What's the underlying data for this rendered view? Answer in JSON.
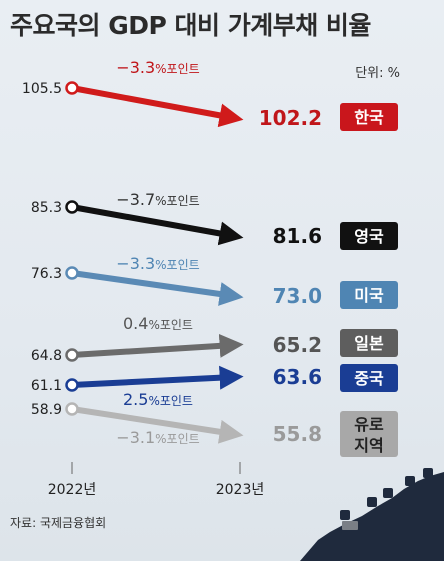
{
  "title": "주요국의 GDP 대비 가계부채 비율",
  "unit_label": "단위: %",
  "source": "자료: 국제금융협회",
  "colors": {
    "background": "#e6ebf0",
    "hill": "#1f2a3d"
  },
  "chart_data": {
    "type": "line",
    "categories": [
      "2022년",
      "2023년"
    ],
    "ylim": [
      50,
      110
    ],
    "series": [
      {
        "name": "한국",
        "values": [
          105.5,
          102.2
        ],
        "change": "−3.3",
        "change_unit": "%포인트",
        "color": "#d01b1b",
        "label_color": "#c0161a",
        "val_color": "#c0161a",
        "change_color": "#c0161a",
        "box_color": "#c9161c",
        "box_text_color": "#ffffff"
      },
      {
        "name": "영국",
        "values": [
          85.3,
          81.6
        ],
        "change": "−3.7",
        "change_unit": "%포인트",
        "color": "#111111",
        "label_color": "#111111",
        "val_color": "#111111",
        "change_color": "#333333",
        "box_color": "#111111",
        "box_text_color": "#ffffff"
      },
      {
        "name": "미국",
        "values": [
          76.3,
          73.0
        ],
        "change": "−3.3",
        "change_unit": "%포인트",
        "color": "#5a8ab5",
        "label_color": "#333333",
        "val_color": "#4f85b3",
        "change_color": "#4f85b3",
        "box_color": "#4f85b3",
        "box_text_color": "#ffffff"
      },
      {
        "name": "일본",
        "values": [
          64.8,
          65.2
        ],
        "change": "0.4",
        "change_unit": "%포인트",
        "color": "#6b6b6b",
        "label_color": "#333333",
        "val_color": "#555555",
        "change_color": "#555555",
        "box_color": "#5e5e5e",
        "box_text_color": "#ffffff"
      },
      {
        "name": "중국",
        "values": [
          61.1,
          63.6
        ],
        "change": "2.5",
        "change_unit": "%포인트",
        "color": "#1a3d94",
        "label_color": "#333333",
        "val_color": "#1a3d94",
        "change_color": "#1a3d94",
        "box_color": "#1a3d94",
        "box_text_color": "#ffffff"
      },
      {
        "name": "유로 지역",
        "values": [
          58.9,
          55.8
        ],
        "change": "−3.1",
        "change_unit": "%포인트",
        "color": "#b5b5b5",
        "label_color": "#333333",
        "val_color": "#9a9a9a",
        "change_color": "#9a9a9a",
        "box_color": "#a8a8a8",
        "box_text_color": "#222222"
      }
    ]
  }
}
